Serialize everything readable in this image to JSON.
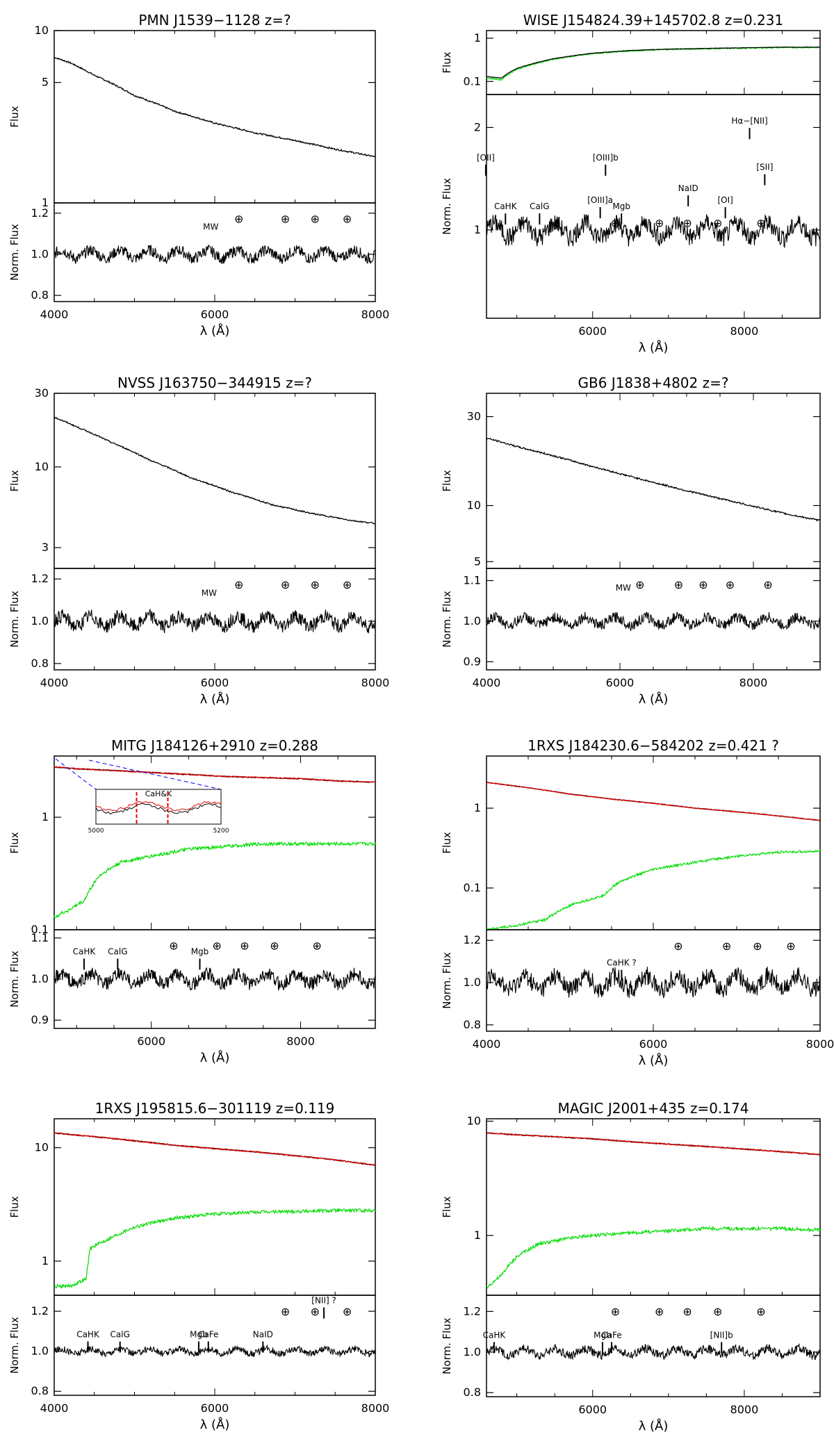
{
  "figure": {
    "axis_label_x": "λ (Å)",
    "axis_label_flux": "Flux",
    "axis_label_norm": "Norm. Flux",
    "earth_symbol": "⊕"
  },
  "colors": {
    "observed": "#000000",
    "model": "#dd0000",
    "host": "#00dd00",
    "mw_label": "#cc0000",
    "zoom_lines": "#0000ff"
  },
  "chart_data": [
    {
      "id": "p1",
      "type": "line",
      "title": "PMN J1539−1128 z=?",
      "top": {
        "scale": "log",
        "ylim": [
          1,
          10
        ],
        "yticks": [
          1,
          5,
          10
        ],
        "series": [
          {
            "name": "observed",
            "x": [
              4000,
              4200,
              4500,
              5000,
              5500,
              6000,
              6500,
              7000,
              7500,
              8000
            ],
            "y": [
              7.0,
              6.5,
              5.5,
              4.2,
              3.4,
              2.9,
              2.55,
              2.3,
              2.05,
              1.85
            ]
          }
        ]
      },
      "bottom": {
        "ylim": [
          0.77,
          1.25
        ],
        "yticks": [
          0.8,
          1.0,
          1.2
        ],
        "level": 1.0,
        "noise": 0.025,
        "lines": [],
        "earth": [
          6300,
          6880,
          7250,
          7650
        ],
        "mw": {
          "label": "MW",
          "x": 5950,
          "y": 1.12,
          "red": true
        }
      },
      "xlim": [
        4000,
        8000
      ],
      "xticks": [
        4000,
        6000,
        8000
      ]
    },
    {
      "id": "p2",
      "type": "line",
      "title": "WISE J154824.39+145702.8 z=0.231",
      "top": {
        "scale": "log",
        "ylim": [
          0.05,
          1.5
        ],
        "yticks": [
          0.1,
          1.0
        ],
        "series": [
          {
            "name": "observed",
            "x": [
              4600,
              4800,
              5000,
              5500,
              6000,
              6500,
              7000,
              7500,
              8000,
              8500,
              9000
            ],
            "y": [
              0.13,
              0.12,
              0.2,
              0.34,
              0.45,
              0.52,
              0.56,
              0.58,
              0.6,
              0.62,
              0.62
            ]
          },
          {
            "name": "host",
            "x": [
              4600,
              4800,
              5000,
              5500,
              6000,
              6500,
              7000,
              7500,
              8000,
              8500,
              9000
            ],
            "y": [
              0.12,
              0.11,
              0.19,
              0.33,
              0.44,
              0.51,
              0.55,
              0.57,
              0.59,
              0.61,
              0.61
            ]
          }
        ]
      },
      "bottom": {
        "ylim": [
          0.55,
          2.5
        ],
        "yticks": [
          1,
          2
        ],
        "level": 1.0,
        "noise": 0.06,
        "logscale": true,
        "lines": [
          {
            "label": "[OII]",
            "x": 4590,
            "y": 1.6
          },
          {
            "label": "CaHK",
            "x": 4850,
            "y": 1.15
          },
          {
            "label": "CalG",
            "x": 5300,
            "y": 1.15
          },
          {
            "label": "[OIII]a",
            "x": 6100,
            "y": 1.2
          },
          {
            "label": "[OIII]b",
            "x": 6170,
            "y": 1.6
          },
          {
            "label": "Mgb",
            "x": 6380,
            "y": 1.15
          },
          {
            "label": "NaID",
            "x": 7260,
            "y": 1.3
          },
          {
            "label": "[OI]",
            "x": 7750,
            "y": 1.2
          },
          {
            "label": "Hα−[NII]",
            "x": 8070,
            "y": 2.05
          },
          {
            "label": "[SII]",
            "x": 8270,
            "y": 1.5
          }
        ],
        "earth": [
          6300,
          6880,
          7250,
          7650,
          8220
        ]
      },
      "xlim": [
        4600,
        9000
      ],
      "xticks": [
        6000,
        8000
      ]
    },
    {
      "id": "p3",
      "type": "line",
      "title": "NVSS J163750−344915 z=?",
      "top": {
        "scale": "log",
        "ylim": [
          2.2,
          30
        ],
        "yticks": [
          3,
          10,
          30
        ],
        "series": [
          {
            "name": "observed",
            "x": [
              4000,
              4300,
              4700,
              5200,
              5700,
              6200,
              6700,
              7200,
              7700,
              8000
            ],
            "y": [
              21,
              18,
              14.5,
              11,
              8.5,
              6.9,
              5.7,
              5.0,
              4.5,
              4.3
            ]
          }
        ]
      },
      "bottom": {
        "ylim": [
          0.77,
          1.25
        ],
        "yticks": [
          0.8,
          1.0,
          1.2
        ],
        "level": 1.0,
        "noise": 0.03,
        "lines": [],
        "earth": [
          6300,
          6880,
          7250,
          7650
        ],
        "mw": {
          "label": "MW",
          "x": 5930,
          "y": 1.12,
          "red": false
        }
      },
      "xlim": [
        4000,
        8000
      ],
      "xticks": [
        4000,
        6000,
        8000
      ]
    },
    {
      "id": "p4",
      "type": "line",
      "title": "GB6 J1838+4802 z=?",
      "top": {
        "scale": "log",
        "ylim": [
          4.6,
          40
        ],
        "yticks": [
          5,
          10,
          30
        ],
        "series": [
          {
            "name": "observed",
            "x": [
              4000,
              4500,
              5000,
              5500,
              6000,
              6500,
              7000,
              7500,
              8000,
              8500,
              9000
            ],
            "y": [
              23,
              20.5,
              18.5,
              16.5,
              14.8,
              13.3,
              12,
              10.9,
              9.9,
              9.0,
              8.3
            ]
          }
        ]
      },
      "bottom": {
        "ylim": [
          0.88,
          1.13
        ],
        "yticks": [
          0.9,
          1.0,
          1.1
        ],
        "level": 1.0,
        "noise": 0.012,
        "lines": [],
        "earth": [
          6300,
          6880,
          7250,
          7650,
          8220
        ],
        "mw": {
          "label": "MW",
          "x": 6050,
          "y": 1.075,
          "red": false
        }
      },
      "xlim": [
        4000,
        9000
      ],
      "xticks": [
        4000,
        6000,
        8000
      ]
    },
    {
      "id": "p5",
      "type": "line",
      "title": "MITG J184126+2910 z=0.288",
      "top": {
        "scale": "log",
        "ylim": [
          0.1,
          3.5
        ],
        "yticks": [
          0.1,
          1.0
        ],
        "series": [
          {
            "name": "observed",
            "x": [
              4700,
              5000,
              5500,
              6000,
              6500,
              7000,
              7500,
              8000,
              8500,
              9000
            ],
            "y": [
              2.8,
              2.7,
              2.6,
              2.5,
              2.4,
              2.3,
              2.25,
              2.2,
              2.1,
              2.05
            ]
          },
          {
            "name": "model",
            "x": [
              4700,
              5000,
              5500,
              6000,
              6500,
              7000,
              7500,
              8000,
              8500,
              9000
            ],
            "y": [
              2.8,
              2.7,
              2.6,
              2.5,
              2.4,
              2.3,
              2.25,
              2.2,
              2.1,
              2.05
            ]
          },
          {
            "name": "host",
            "x": [
              4700,
              4900,
              5100,
              5300,
              5600,
              6000,
              6500,
              7000,
              7500,
              8000,
              8500,
              9000
            ],
            "y": [
              0.13,
              0.15,
              0.18,
              0.3,
              0.4,
              0.45,
              0.52,
              0.55,
              0.58,
              0.58,
              0.58,
              0.58
            ]
          }
        ],
        "inset": {
          "label": "CaH&K",
          "xlim": [
            5000,
            5200
          ],
          "tick_labels": [
            "5000",
            "5200"
          ],
          "marks": [
            5065,
            5115
          ]
        }
      },
      "bottom": {
        "ylim": [
          0.88,
          1.12
        ],
        "yticks": [
          0.9,
          1.0,
          1.1
        ],
        "level": 1.0,
        "noise": 0.015,
        "lines": [
          {
            "label": "CaHK",
            "x": 5100,
            "y": 1.06
          },
          {
            "label": "CalG",
            "x": 5550,
            "y": 1.06
          },
          {
            "label": "Mgb",
            "x": 6650,
            "y": 1.06
          }
        ],
        "earth": [
          6300,
          6880,
          7250,
          7650,
          8220
        ]
      },
      "xlim": [
        4700,
        9000
      ],
      "xticks": [
        6000,
        8000
      ]
    },
    {
      "id": "p6",
      "type": "line",
      "title": "1RXS J184230.6−584202 z=0.421 ?",
      "top": {
        "scale": "log",
        "ylim": [
          0.03,
          4.5
        ],
        "yticks": [
          0.1,
          1.0
        ],
        "series": [
          {
            "name": "observed",
            "x": [
              4000,
              4500,
              5000,
              5500,
              6000,
              6500,
              7000,
              7500,
              8000
            ],
            "y": [
              2.1,
              1.8,
              1.5,
              1.3,
              1.15,
              1.0,
              0.9,
              0.8,
              0.7
            ]
          },
          {
            "name": "model",
            "x": [
              4000,
              4500,
              5000,
              5500,
              6000,
              6500,
              7000,
              7500,
              8000
            ],
            "y": [
              2.1,
              1.8,
              1.5,
              1.3,
              1.15,
              1.0,
              0.9,
              0.8,
              0.7
            ]
          },
          {
            "name": "host",
            "x": [
              4000,
              4300,
              4700,
              5000,
              5400,
              5600,
              6000,
              6500,
              7000,
              7500,
              8000
            ],
            "y": [
              0.03,
              0.033,
              0.04,
              0.06,
              0.08,
              0.12,
              0.17,
              0.21,
              0.25,
              0.28,
              0.29
            ]
          }
        ]
      },
      "bottom": {
        "ylim": [
          0.77,
          1.25
        ],
        "yticks": [
          0.8,
          1.0,
          1.2
        ],
        "level": 1.0,
        "noise": 0.04,
        "lines": [
          {
            "label": "CaHK ?",
            "x": 5620,
            "y": 1.08
          }
        ],
        "earth": [
          6300,
          6880,
          7250,
          7650
        ]
      },
      "xlim": [
        4000,
        8000
      ],
      "xticks": [
        4000,
        6000,
        8000
      ]
    },
    {
      "id": "p7",
      "type": "line",
      "title": "1RXS J195815.6−301119 z=0.119",
      "top": {
        "scale": "log",
        "ylim": [
          0.5,
          18
        ],
        "yticks": [
          1,
          10
        ],
        "series": [
          {
            "name": "observed",
            "x": [
              4000,
              4500,
              5000,
              5500,
              6000,
              6500,
              7000,
              7500,
              8000
            ],
            "y": [
              13.5,
              12.5,
              11.5,
              10.5,
              9.8,
              9.2,
              8.5,
              7.8,
              7.0
            ]
          },
          {
            "name": "model",
            "x": [
              4000,
              4500,
              5000,
              5500,
              6000,
              6500,
              7000,
              7500,
              8000
            ],
            "y": [
              13.5,
              12.5,
              11.5,
              10.5,
              9.8,
              9.2,
              8.5,
              7.8,
              7.0
            ]
          },
          {
            "name": "host",
            "x": [
              4000,
              4200,
              4400,
              4450,
              4700,
              5000,
              5500,
              6000,
              6500,
              7000,
              7500,
              8000
            ],
            "y": [
              0.6,
              0.6,
              0.7,
              1.3,
              1.6,
              2.0,
              2.4,
              2.6,
              2.7,
              2.75,
              2.8,
              2.8
            ]
          }
        ]
      },
      "bottom": {
        "ylim": [
          0.78,
          1.28
        ],
        "yticks": [
          0.8,
          1.0,
          1.2
        ],
        "level": 1.0,
        "noise": 0.015,
        "lines": [
          {
            "label": "CaHK",
            "x": 4420,
            "y": 1.07
          },
          {
            "label": "CalG",
            "x": 4820,
            "y": 1.07
          },
          {
            "label": "Mgb",
            "x": 5800,
            "y": 1.07
          },
          {
            "label": "CaFe",
            "x": 5920,
            "y": 1.07
          },
          {
            "label": "NaID",
            "x": 6600,
            "y": 1.07
          },
          {
            "label": "[NII] ?",
            "x": 7360,
            "y": 1.24
          }
        ],
        "earth": [
          6880,
          7250,
          7650
        ]
      },
      "xlim": [
        4000,
        8000
      ],
      "xticks": [
        4000,
        6000,
        8000
      ]
    },
    {
      "id": "p8",
      "type": "line",
      "title": "MAGIC J2001+435 z=0.174",
      "top": {
        "scale": "log",
        "ylim": [
          0.3,
          10.5
        ],
        "yticks": [
          1,
          10
        ],
        "series": [
          {
            "name": "observed",
            "x": [
              4600,
              5000,
              5500,
              6000,
              6500,
              7000,
              7500,
              8000,
              8500,
              9000
            ],
            "y": [
              7.9,
              7.6,
              7.3,
              7.0,
              6.6,
              6.3,
              6.0,
              5.7,
              5.4,
              5.1
            ]
          },
          {
            "name": "model",
            "x": [
              4600,
              5000,
              5500,
              6000,
              6500,
              7000,
              7500,
              8000,
              8500,
              9000
            ],
            "y": [
              7.9,
              7.6,
              7.3,
              7.0,
              6.6,
              6.3,
              6.0,
              5.7,
              5.4,
              5.1
            ]
          },
          {
            "name": "host",
            "x": [
              4600,
              4800,
              5000,
              5300,
              5700,
              6000,
              6500,
              7000,
              7500,
              8000,
              8500,
              9000
            ],
            "y": [
              0.35,
              0.45,
              0.65,
              0.85,
              0.95,
              1.0,
              1.05,
              1.1,
              1.15,
              1.15,
              1.15,
              1.12
            ]
          }
        ]
      },
      "bottom": {
        "ylim": [
          0.78,
          1.28
        ],
        "yticks": [
          0.8,
          1.0,
          1.2
        ],
        "level": 1.0,
        "noise": 0.02,
        "lines": [
          {
            "label": "CaHK",
            "x": 4700,
            "y": 1.07
          },
          {
            "label": "Mgb",
            "x": 6130,
            "y": 1.07
          },
          {
            "label": "CaFe",
            "x": 6250,
            "y": 1.07
          },
          {
            "label": "[NII]b",
            "x": 7700,
            "y": 1.07
          }
        ],
        "earth": [
          6300,
          6880,
          7250,
          7650,
          8220
        ]
      },
      "xlim": [
        4600,
        9000
      ],
      "xticks": [
        6000,
        8000
      ]
    }
  ]
}
